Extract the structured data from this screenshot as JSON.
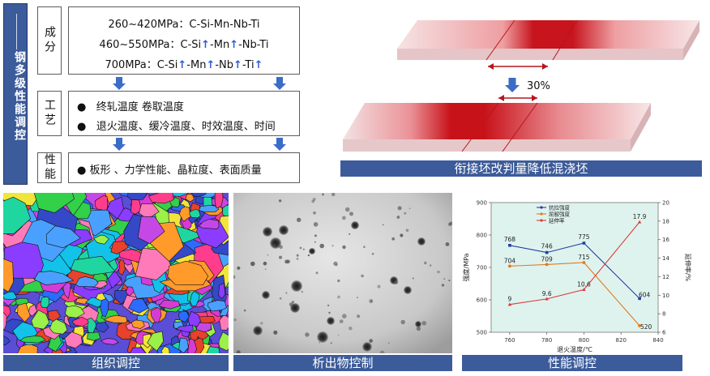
{
  "side_title": "钢多级性能调控",
  "sections": {
    "composition": {
      "label": "成分",
      "lines": [
        {
          "prefix": "260~420MPa：C-Si-Mn-Nb-Ti"
        },
        {
          "prefix": "460~550MPa：C-Si",
          "mid1": "-Mn",
          "mid2": "-Nb-Ti"
        },
        {
          "prefix": "700MPa：C-Si",
          "mid1": "-Mn",
          "mid2": "-Nb",
          "mid3": "-Ti"
        }
      ],
      "up_arrow": "↑"
    },
    "process": {
      "label": "工艺",
      "lines": [
        "终轧温度     卷取温度",
        "退火温度、缓冷温度、时效温度、时间"
      ]
    },
    "performance": {
      "label": "性能",
      "lines": [
        "板形 、力学性能、晶粒度、表面质量"
      ]
    }
  },
  "plate_diagram": {
    "reduction": "30%",
    "caption": "衔接坯改判量降低混浇坯"
  },
  "captions": {
    "microstructure": "组织调控",
    "precipitate": "析出物控制",
    "performance": "性能调控"
  },
  "chart_data": {
    "type": "line",
    "x": [
      760,
      780,
      800,
      830
    ],
    "xlabel": "退火温度/℃",
    "ylabel_left": "强度/MPa",
    "ylabel_right": "延伸率/%",
    "xlim": [
      750,
      840
    ],
    "xticks": [
      760,
      780,
      800,
      820,
      840
    ],
    "ylim_left": [
      500,
      900
    ],
    "yticks_left": [
      500,
      600,
      700,
      800,
      900
    ],
    "ylim_right": [
      6,
      20
    ],
    "yticks_right": [
      6,
      8,
      10,
      12,
      14,
      16,
      18,
      20
    ],
    "series": [
      {
        "name": "抗拉强度",
        "axis": "left",
        "values": [
          768,
          746,
          775,
          604
        ],
        "labels": [
          "768",
          "746",
          "775",
          "604"
        ],
        "color": "#1f3fa8"
      },
      {
        "name": "屈服强度",
        "axis": "left",
        "values": [
          704,
          709,
          715,
          520
        ],
        "labels": [
          "704",
          "709",
          "715",
          "520"
        ],
        "color": "#e07a1f"
      },
      {
        "name": "延伸率",
        "axis": "right",
        "values": [
          9.0,
          9.6,
          10.6,
          17.9
        ],
        "labels": [
          "9",
          "9.6",
          "10.6",
          "17.9"
        ],
        "color": "#d93a3a"
      }
    ],
    "legend": "top-left",
    "background": "#dff3ee"
  }
}
